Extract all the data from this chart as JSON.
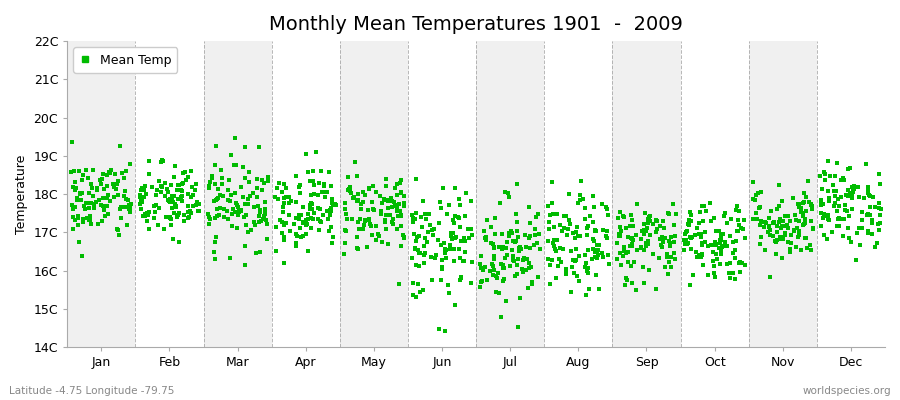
{
  "title": "Monthly Mean Temperatures 1901  -  2009",
  "ylabel": "Temperature",
  "ylim": [
    14,
    22
  ],
  "ytick_labels": [
    "14C",
    "15C",
    "16C",
    "17C",
    "18C",
    "19C",
    "20C",
    "21C",
    "22C"
  ],
  "ytick_values": [
    14,
    15,
    16,
    17,
    18,
    19,
    20,
    21,
    22
  ],
  "months": [
    "Jan",
    "Feb",
    "Mar",
    "Apr",
    "May",
    "Jun",
    "Jul",
    "Aug",
    "Sep",
    "Oct",
    "Nov",
    "Dec"
  ],
  "month_means": [
    17.85,
    17.8,
    17.8,
    17.65,
    17.55,
    16.6,
    16.55,
    16.65,
    16.75,
    16.8,
    17.25,
    17.7
  ],
  "month_stds": [
    0.55,
    0.5,
    0.6,
    0.55,
    0.55,
    0.75,
    0.7,
    0.65,
    0.55,
    0.55,
    0.5,
    0.55
  ],
  "n_years": 109,
  "marker_color": "#00bb00",
  "marker": "s",
  "marker_size": 2.5,
  "legend_label": "Mean Temp",
  "plot_bg_color": "#f0f0f0",
  "alt_bg_color": "#ffffff",
  "fig_bg_color": "#ffffff",
  "grid_line_color": "#888888",
  "title_fontsize": 14,
  "label_fontsize": 9,
  "tick_fontsize": 9,
  "bottom_left_text": "Latitude -4.75 Longitude -79.75",
  "bottom_right_text": "worldspecies.org",
  "seed": 42
}
